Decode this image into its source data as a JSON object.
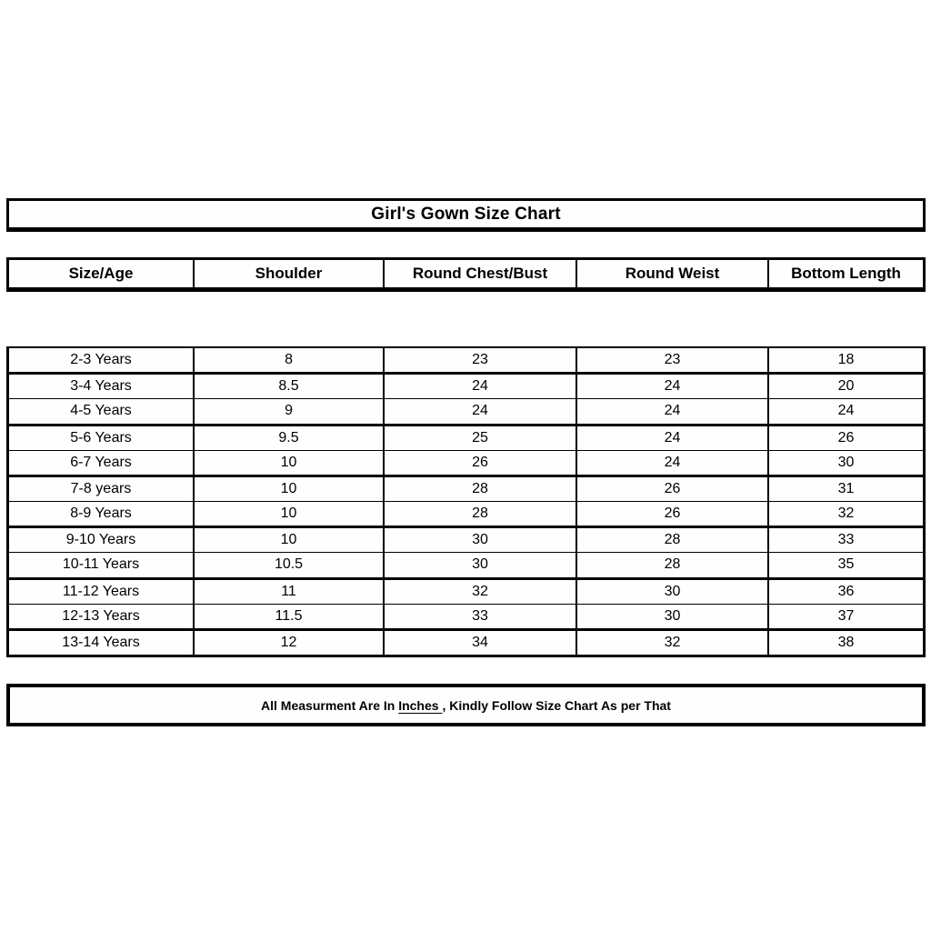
{
  "page": {
    "background": "#ffffff",
    "border_color": "#000000",
    "text_color": "#000000"
  },
  "chart_data": {
    "type": "table",
    "title": "Girl's Gown Size Chart",
    "columns": [
      "Size/Age",
      "Shoulder",
      "Round Chest/Bust",
      "Round Weist",
      "Bottom Length"
    ],
    "rows": [
      [
        "2-3 Years",
        "8",
        "23",
        "23",
        "18"
      ],
      [
        "3-4 Years",
        "8.5",
        "24",
        "24",
        "20"
      ],
      [
        "4-5 Years",
        "9",
        "24",
        "24",
        "24"
      ],
      [
        "5-6 Years",
        "9.5",
        "25",
        "24",
        "26"
      ],
      [
        "6-7 Years",
        "10",
        "26",
        "24",
        "30"
      ],
      [
        "7-8 years",
        "10",
        "28",
        "26",
        "31"
      ],
      [
        "8-9 Years",
        "10",
        "28",
        "26",
        "32"
      ],
      [
        "9-10 Years",
        "10",
        "30",
        "28",
        "33"
      ],
      [
        "10-11 Years",
        "10.5",
        "30",
        "28",
        "35"
      ],
      [
        "11-12 Years",
        "11",
        "32",
        "30",
        "36"
      ],
      [
        "12-13 Years",
        "11.5",
        "33",
        "30",
        "37"
      ],
      [
        "13-14 Years",
        "12",
        "34",
        "32",
        "38"
      ]
    ],
    "units": "Inches",
    "note": "All Measurment Are In Inches , Kindly Follow Size Chart As per That",
    "layout": {
      "grid": true,
      "legend": "none"
    }
  },
  "footer_note": {
    "prefix": "All Measurment Are In ",
    "underlined": "Inches ",
    "suffix": ", Kindly Follow Size Chart As per That"
  }
}
